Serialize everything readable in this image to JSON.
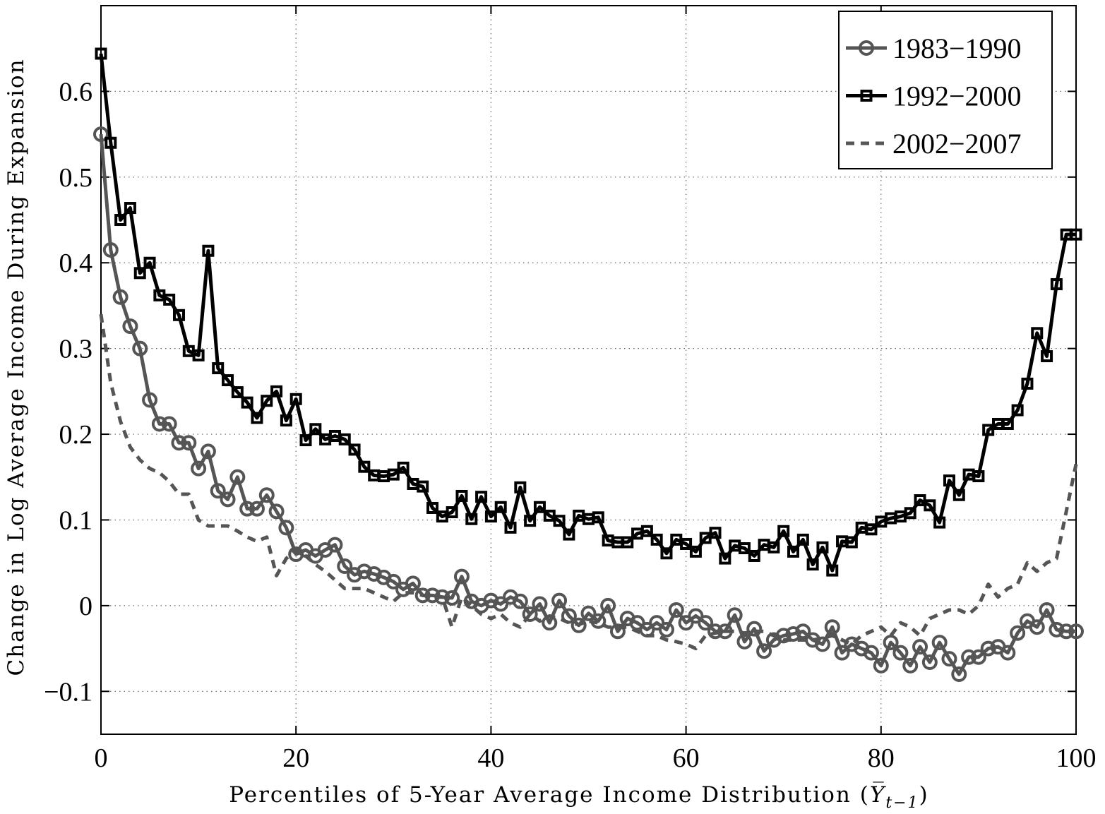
{
  "chart_data": {
    "type": "line",
    "xlabel_parts": [
      "Percentiles of 5-Year Average Income Distribution (",
      "Y̅",
      "t−1",
      ")"
    ],
    "ylabel": "Change in Log Average Income During Expansion",
    "xlim": [
      0,
      100
    ],
    "ylim": [
      -0.15,
      0.7
    ],
    "xticks": [
      0,
      20,
      40,
      60,
      80,
      100
    ],
    "xtick_labels": [
      "0",
      "20",
      "40",
      "60",
      "80",
      "100"
    ],
    "yticks": [
      -0.1,
      0,
      0.1,
      0.2,
      0.3,
      0.4,
      0.5,
      0.6
    ],
    "ytick_labels": [
      "−0.1",
      "0",
      "0.1",
      "0.2",
      "0.3",
      "0.4",
      "0.5",
      "0.6"
    ],
    "grid": true,
    "legend_position": "top-right",
    "series": [
      {
        "name": "1983−1990",
        "color": "#555555",
        "marker": "circle",
        "style": "solid",
        "values": [
          0.55,
          0.415,
          0.36,
          0.326,
          0.3,
          0.24,
          0.212,
          0.212,
          0.19,
          0.19,
          0.16,
          0.18,
          0.134,
          0.124,
          0.15,
          0.113,
          0.113,
          0.129,
          0.11,
          0.091,
          0.06,
          0.065,
          0.058,
          0.065,
          0.071,
          0.046,
          0.036,
          0.04,
          0.037,
          0.033,
          0.028,
          0.019,
          0.026,
          0.012,
          0.012,
          0.01,
          0.009,
          0.034,
          0.005,
          0.0,
          0.006,
          0.002,
          0.01,
          0.005,
          -0.01,
          0.002,
          -0.02,
          0.006,
          -0.012,
          -0.023,
          -0.009,
          -0.018,
          0.0,
          -0.03,
          -0.015,
          -0.02,
          -0.028,
          -0.02,
          -0.028,
          -0.005,
          -0.02,
          -0.012,
          -0.02,
          -0.03,
          -0.03,
          -0.011,
          -0.042,
          -0.027,
          -0.053,
          -0.04,
          -0.035,
          -0.033,
          -0.03,
          -0.04,
          -0.045,
          -0.025,
          -0.055,
          -0.045,
          -0.05,
          -0.055,
          -0.07,
          -0.043,
          -0.055,
          -0.07,
          -0.048,
          -0.066,
          -0.043,
          -0.062,
          -0.08,
          -0.06,
          -0.06,
          -0.05,
          -0.048,
          -0.055,
          -0.032,
          -0.018,
          -0.025,
          -0.005,
          -0.028,
          -0.03,
          -0.03
        ]
      },
      {
        "name": "1992−2000",
        "color": "#000000",
        "marker": "square",
        "style": "solid",
        "values": [
          0.644,
          0.54,
          0.45,
          0.464,
          0.388,
          0.4,
          0.362,
          0.357,
          0.339,
          0.297,
          0.292,
          0.414,
          0.277,
          0.263,
          0.249,
          0.237,
          0.219,
          0.239,
          0.25,
          0.216,
          0.241,
          0.193,
          0.206,
          0.194,
          0.198,
          0.194,
          0.182,
          0.162,
          0.152,
          0.151,
          0.153,
          0.161,
          0.142,
          0.139,
          0.114,
          0.104,
          0.109,
          0.128,
          0.101,
          0.127,
          0.104,
          0.115,
          0.091,
          0.138,
          0.099,
          0.115,
          0.105,
          0.099,
          0.083,
          0.105,
          0.101,
          0.103,
          0.076,
          0.074,
          0.074,
          0.084,
          0.087,
          0.077,
          0.061,
          0.077,
          0.072,
          0.063,
          0.079,
          0.085,
          0.055,
          0.07,
          0.067,
          0.058,
          0.071,
          0.068,
          0.087,
          0.063,
          0.077,
          0.048,
          0.068,
          0.041,
          0.075,
          0.074,
          0.091,
          0.089,
          0.098,
          0.102,
          0.104,
          0.108,
          0.123,
          0.117,
          0.097,
          0.146,
          0.129,
          0.153,
          0.151,
          0.205,
          0.212,
          0.212,
          0.228,
          0.259,
          0.318,
          0.291,
          0.375,
          0.433,
          0.433
        ]
      },
      {
        "name": "2002−2007",
        "color": "#555555",
        "marker": "none",
        "style": "dashed",
        "values": [
          0.34,
          0.26,
          0.215,
          0.185,
          0.17,
          0.16,
          0.155,
          0.145,
          0.13,
          0.13,
          0.1,
          0.093,
          0.093,
          0.093,
          0.087,
          0.08,
          0.075,
          0.08,
          0.035,
          0.055,
          0.065,
          0.058,
          0.048,
          0.04,
          0.03,
          0.02,
          0.02,
          0.02,
          0.015,
          0.01,
          0.005,
          0.015,
          0.015,
          0.012,
          0.01,
          0.01,
          -0.025,
          0.01,
          0.0,
          -0.01,
          -0.015,
          -0.01,
          -0.02,
          -0.025,
          -0.01,
          -0.018,
          -0.012,
          -0.015,
          -0.02,
          -0.022,
          -0.018,
          -0.02,
          -0.025,
          -0.025,
          -0.025,
          -0.03,
          -0.035,
          -0.035,
          -0.04,
          -0.042,
          -0.045,
          -0.05,
          -0.035,
          -0.032,
          -0.03,
          -0.03,
          -0.032,
          -0.03,
          -0.03,
          -0.035,
          -0.04,
          -0.04,
          -0.04,
          -0.04,
          -0.038,
          -0.035,
          -0.04,
          -0.045,
          -0.035,
          -0.03,
          -0.025,
          -0.035,
          -0.02,
          -0.025,
          -0.035,
          -0.015,
          -0.01,
          -0.005,
          -0.005,
          -0.01,
          0.0,
          0.025,
          0.01,
          0.02,
          0.025,
          0.05,
          0.04,
          0.05,
          0.055,
          0.11,
          0.165
        ]
      }
    ]
  }
}
